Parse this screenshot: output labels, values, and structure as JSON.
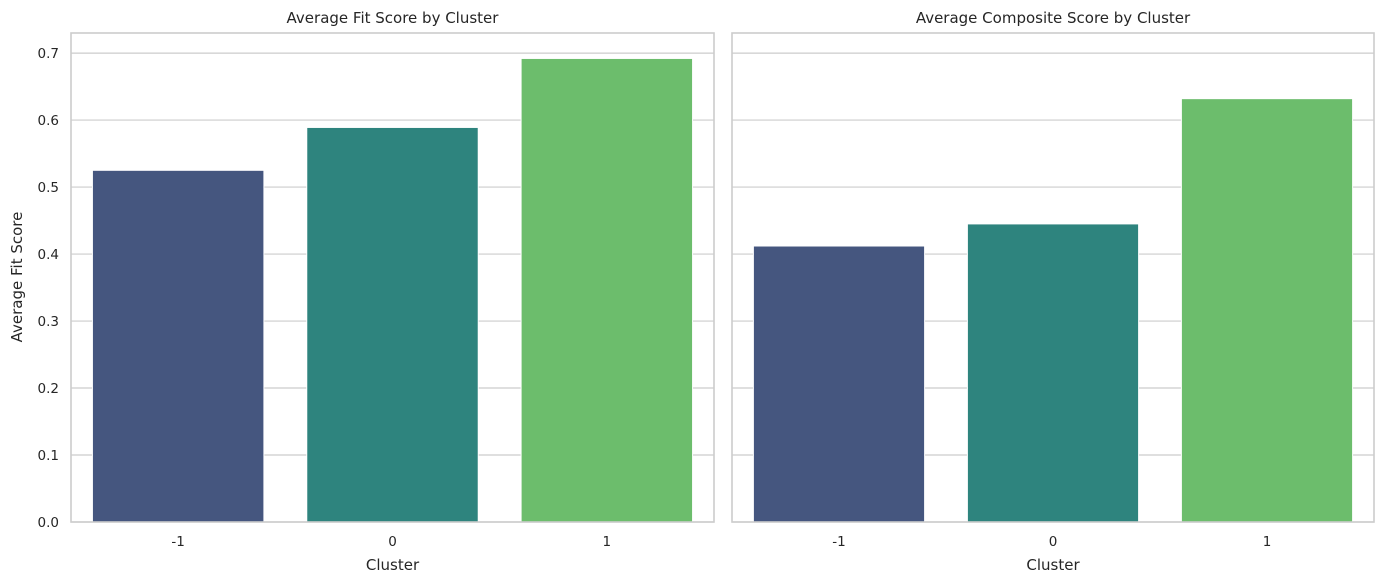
{
  "chart_data": [
    {
      "type": "bar",
      "title": "Average Fit Score by Cluster",
      "xlabel": "Cluster",
      "ylabel": "Average Fit Score",
      "categories": [
        "-1",
        "0",
        "1"
      ],
      "values": [
        0.525,
        0.589,
        0.692
      ],
      "colors": [
        "#45567f",
        "#2e847e",
        "#6cbd6c"
      ],
      "ylim": [
        0,
        0.73
      ],
      "yticks": [
        "0.0",
        "0.1",
        "0.2",
        "0.3",
        "0.4",
        "0.5",
        "0.6",
        "0.7"
      ],
      "grid": true,
      "legend": "none"
    },
    {
      "type": "bar",
      "title": "Average Composite Score by Cluster",
      "xlabel": "Cluster",
      "ylabel": "",
      "categories": [
        "-1",
        "0",
        "1"
      ],
      "values": [
        0.412,
        0.445,
        0.632
      ],
      "colors": [
        "#45567f",
        "#2e847e",
        "#6cbd6c"
      ],
      "ylim": [
        0,
        0.73
      ],
      "yticks": [],
      "grid": true,
      "legend": "none"
    }
  ]
}
